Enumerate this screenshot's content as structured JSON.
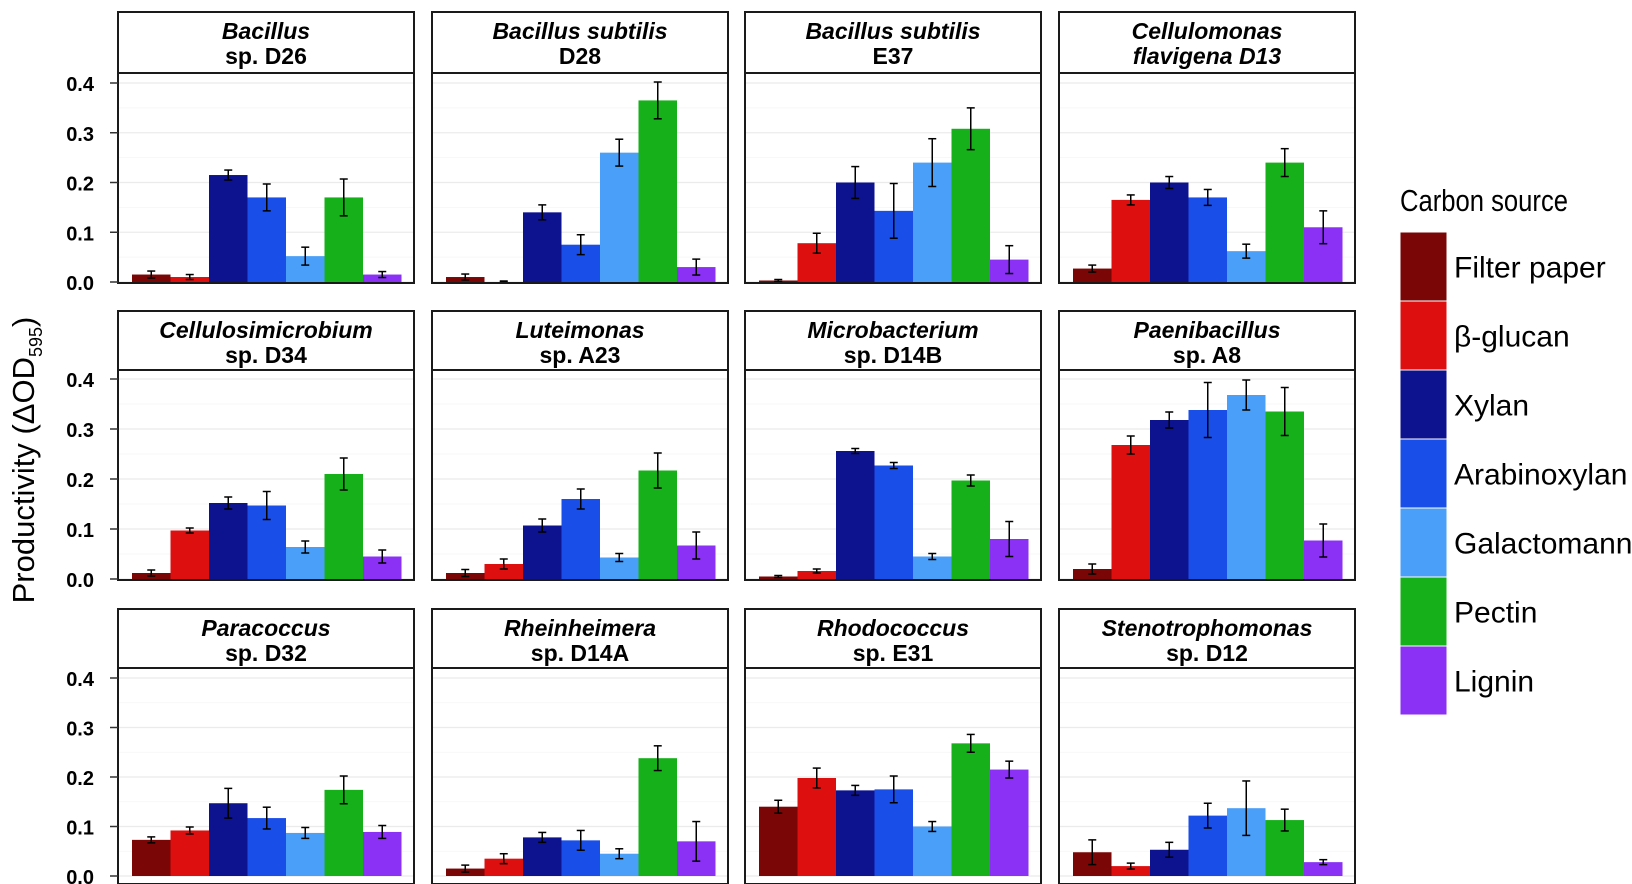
{
  "chart_data": {
    "type": "bar",
    "ylabel": "Productivity (ΔOD595)",
    "ylabel_main": "Productivity (ΔOD",
    "ylabel_sub": "595",
    "ylabel_close": ")",
    "ylim": [
      0,
      0.4
    ],
    "yticks": [
      "0.0",
      "0.1",
      "0.2",
      "0.3",
      "0.4"
    ],
    "grid": true,
    "legend": {
      "title": "Carbon source",
      "placement": "right",
      "entries": [
        "Filter paper",
        "β-glucan",
        "Xylan",
        "Arabinoxylan",
        "Galactomannan",
        "Pectin",
        "Lignin"
      ]
    },
    "colors": [
      "#7b0606",
      "#dd0f0f",
      "#0d128f",
      "#1a4ee8",
      "#4a9ff8",
      "#16b11a",
      "#8a31f5"
    ],
    "categories": [
      "Filter paper",
      "β-glucan",
      "Xylan",
      "Arabinoxylan",
      "Galactomannan",
      "Pectin",
      "Lignin"
    ],
    "panels": [
      {
        "title_line1": "Bacillus",
        "title_line2": "sp. D26",
        "italic2": false,
        "values": [
          0.015,
          0.01,
          0.215,
          0.17,
          0.052,
          0.17,
          0.015
        ],
        "errors": [
          0.007,
          0.005,
          0.01,
          0.027,
          0.018,
          0.037,
          0.006
        ]
      },
      {
        "title_line1": "Bacillus subtilis",
        "title_line2": "D28",
        "italic2": false,
        "values": [
          0.01,
          0.0,
          0.14,
          0.075,
          0.26,
          0.365,
          0.03
        ],
        "errors": [
          0.006,
          0.002,
          0.015,
          0.02,
          0.027,
          0.037,
          0.016
        ]
      },
      {
        "title_line1": "Bacillus subtilis",
        "title_line2": "E37",
        "italic2": false,
        "values": [
          0.003,
          0.078,
          0.2,
          0.143,
          0.24,
          0.308,
          0.045
        ],
        "errors": [
          0.002,
          0.02,
          0.032,
          0.055,
          0.048,
          0.042,
          0.028
        ]
      },
      {
        "title_line1": "Cellulomonas",
        "title_line2": "flavigena D13",
        "italic2": true,
        "values": [
          0.027,
          0.165,
          0.2,
          0.17,
          0.062,
          0.24,
          0.11
        ],
        "errors": [
          0.007,
          0.01,
          0.012,
          0.016,
          0.014,
          0.028,
          0.033
        ]
      },
      {
        "title_line1": "Cellulosimicrobium",
        "title_line2": "sp. D34",
        "italic2": false,
        "values": [
          0.012,
          0.097,
          0.152,
          0.147,
          0.064,
          0.21,
          0.045
        ],
        "errors": [
          0.006,
          0.005,
          0.012,
          0.028,
          0.012,
          0.032,
          0.013
        ]
      },
      {
        "title_line1": "Luteimonas",
        "title_line2": "sp. A23",
        "italic2": false,
        "values": [
          0.012,
          0.03,
          0.107,
          0.16,
          0.043,
          0.217,
          0.067
        ],
        "errors": [
          0.007,
          0.01,
          0.013,
          0.02,
          0.008,
          0.035,
          0.027
        ]
      },
      {
        "title_line1": "Microbacterium",
        "title_line2": "sp. D14B",
        "italic2": false,
        "values": [
          0.005,
          0.016,
          0.256,
          0.227,
          0.045,
          0.197,
          0.08
        ],
        "errors": [
          0.002,
          0.004,
          0.005,
          0.006,
          0.006,
          0.011,
          0.035
        ]
      },
      {
        "title_line1": "Paenibacillus",
        "title_line2": "sp. A8",
        "italic2": false,
        "values": [
          0.02,
          0.268,
          0.318,
          0.338,
          0.368,
          0.335,
          0.077
        ],
        "errors": [
          0.01,
          0.018,
          0.016,
          0.055,
          0.03,
          0.048,
          0.033
        ]
      },
      {
        "title_line1": "Paracoccus",
        "title_line2": "sp. D32",
        "italic2": false,
        "values": [
          0.073,
          0.092,
          0.147,
          0.117,
          0.087,
          0.174,
          0.089
        ],
        "errors": [
          0.006,
          0.007,
          0.03,
          0.022,
          0.011,
          0.028,
          0.013
        ]
      },
      {
        "title_line1": "Rheinheimera",
        "title_line2": "sp. D14A",
        "italic2": false,
        "values": [
          0.015,
          0.035,
          0.078,
          0.072,
          0.045,
          0.238,
          0.07
        ],
        "errors": [
          0.007,
          0.01,
          0.01,
          0.02,
          0.01,
          0.025,
          0.04
        ]
      },
      {
        "title_line1": "Rhodococcus",
        "title_line2": "sp. E31",
        "italic2": false,
        "values": [
          0.14,
          0.198,
          0.173,
          0.175,
          0.1,
          0.268,
          0.215
        ],
        "errors": [
          0.013,
          0.02,
          0.01,
          0.027,
          0.01,
          0.018,
          0.017
        ]
      },
      {
        "title_line1": "Stenotrophomonas",
        "title_line2": "sp. D12",
        "italic2": false,
        "values": [
          0.048,
          0.02,
          0.053,
          0.122,
          0.137,
          0.113,
          0.028
        ],
        "errors": [
          0.025,
          0.006,
          0.015,
          0.025,
          0.055,
          0.022,
          0.005
        ]
      }
    ]
  }
}
